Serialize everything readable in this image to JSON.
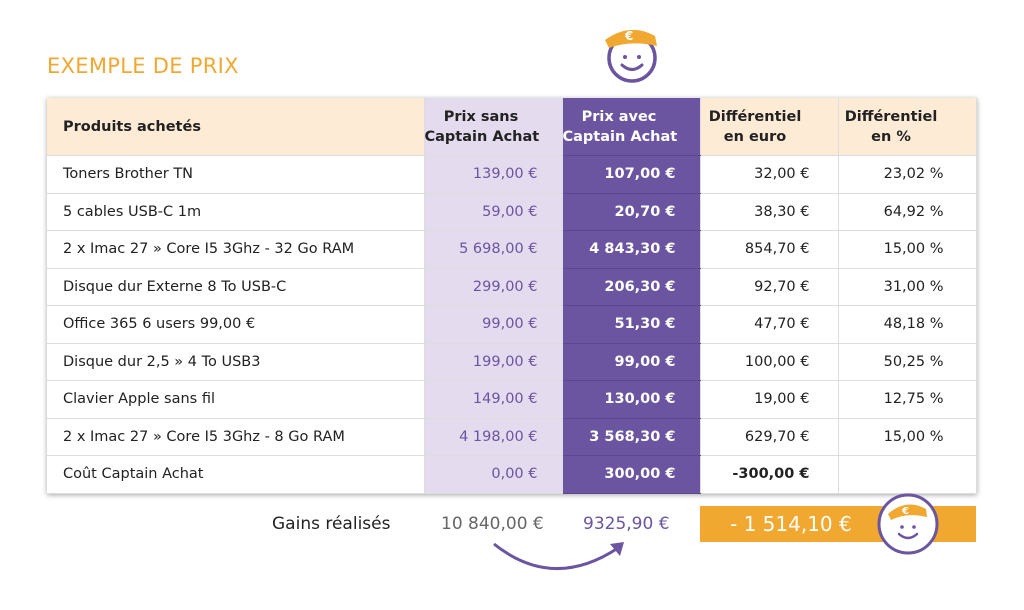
{
  "title": "EXEMPLE DE PRIX",
  "table": {
    "header": [
      [
        "Produits achetés"
      ],
      [
        "Prix sans",
        "Captain Achat"
      ],
      [
        "Prix avec",
        "Captain Achat"
      ],
      [
        "Différentiel",
        "en euro"
      ],
      [
        "Différentiel",
        "en %"
      ]
    ],
    "rows": [
      [
        "Toners Brother TN",
        "139,00 €",
        "107,00 €",
        "32,00 €",
        "23,02 %"
      ],
      [
        "5 cables USB-C 1m",
        "59,00 €",
        "20,70 €",
        "38,30 €",
        "64,92 %"
      ],
      [
        "2 x Imac 27 » Core I5 3Ghz - 32 Go RAM",
        "5 698,00 €",
        "4 843,30 €",
        "854,70 €",
        "15,00 %"
      ],
      [
        "Disque dur Externe 8 To USB-C",
        "299,00 €",
        "206,30 €",
        "92,70 €",
        "31,00 %"
      ],
      [
        "Office 365 6 users 99,00 €",
        "99,00 €",
        "51,30 €",
        "47,70 €",
        "48,18 %"
      ],
      [
        "Disque dur 2,5 » 4 To USB3",
        "199,00 €",
        "99,00 €",
        "100,00 €",
        "50,25 %"
      ],
      [
        "Clavier Apple sans fil",
        "149,00 €",
        "130,00 €",
        "19,00 €",
        "12,75 %"
      ],
      [
        "2 x Imac 27 » Core I5 3Ghz - 8 Go RAM",
        "4 198,00 €",
        "3 568,30 €",
        "629,70 €",
        "15,00 %"
      ],
      [
        "Coût Captain Achat",
        "0,00 €",
        "300,00 €",
        "-300,00 €"
      ]
    ]
  },
  "summary": {
    "label": "Gains réalisés",
    "without": "10 840,00 €",
    "with": "9325,90 €",
    "difference": "- 1 514,10 €"
  }
}
